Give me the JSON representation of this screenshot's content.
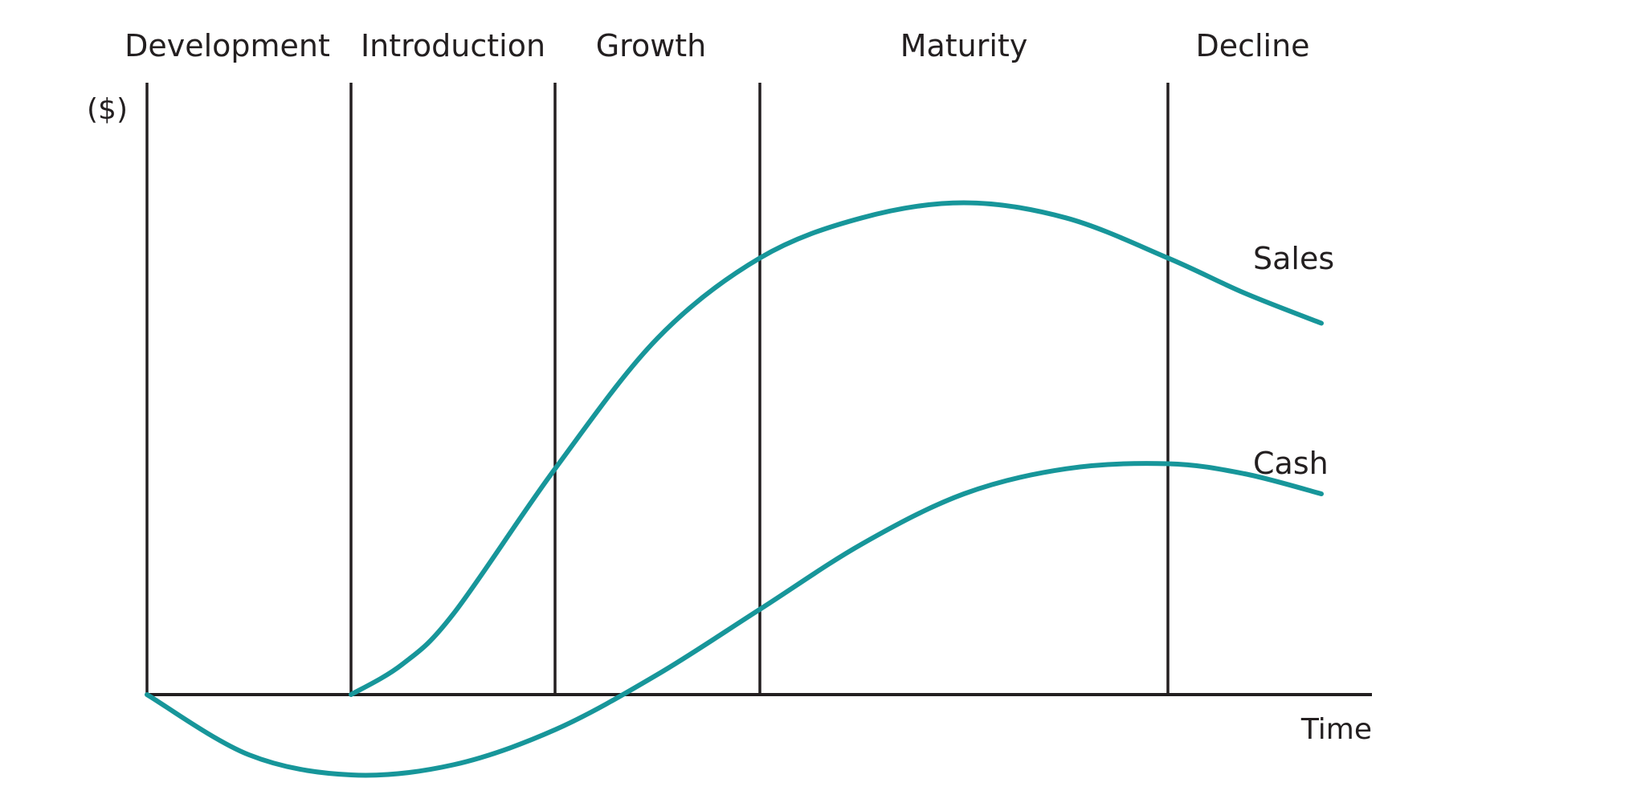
{
  "chart_data": {
    "type": "line",
    "x_axis_label": "Time",
    "y_axis_label": "($)",
    "stages": [
      "Development",
      "Introduction",
      "Growth",
      "Maturity",
      "Decline"
    ],
    "stage_boundaries": [
      0,
      1,
      2,
      3,
      5,
      5.7
    ],
    "grid": false,
    "legend": "none",
    "curve_color": "#17969a",
    "line_color": "#231f20",
    "series": [
      {
        "name": "Sales",
        "x": [
          1.0,
          1.25,
          1.5,
          2.0,
          2.5,
          3.0,
          3.5,
          4.0,
          4.5,
          5.0,
          5.35,
          5.7
        ],
        "values": [
          0.0,
          0.06,
          0.16,
          0.45,
          0.71,
          0.87,
          0.95,
          0.98,
          0.95,
          0.87,
          0.8,
          0.74
        ]
      },
      {
        "name": "Cash",
        "x": [
          0.0,
          0.5,
          1.0,
          1.5,
          2.0,
          2.5,
          3.0,
          3.5,
          4.0,
          4.5,
          5.0,
          5.35,
          5.7
        ],
        "values": [
          0.0,
          -0.12,
          -0.16,
          -0.14,
          -0.07,
          0.04,
          0.17,
          0.3,
          0.4,
          0.45,
          0.46,
          0.44,
          0.4
        ]
      }
    ]
  }
}
